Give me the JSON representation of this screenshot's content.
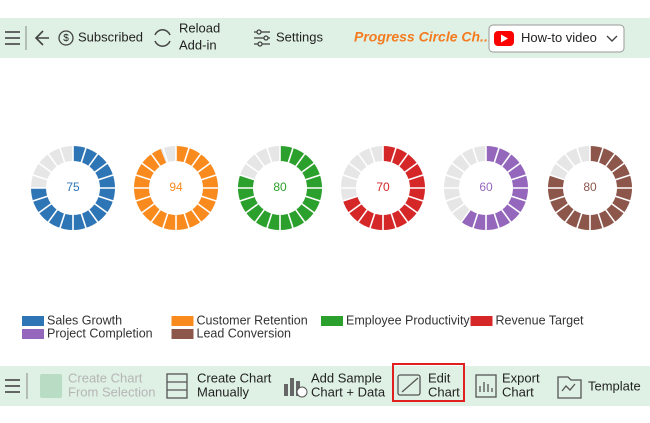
{
  "top_toolbar": {
    "subscribed": "Subscribed",
    "reload": [
      "Reload",
      "Add-in"
    ],
    "settings": "Settings",
    "title": "Progress Circle Ch...",
    "video_button": "How-to video"
  },
  "chart_data": {
    "type": "progress-circle",
    "series": [
      {
        "name": "Sales Growth",
        "color": "#2e75b6",
        "value": 75
      },
      {
        "name": "Customer Retention",
        "color": "#f98b1e",
        "value": 94
      },
      {
        "name": "Employee Productivity",
        "color": "#2ca02c",
        "value": 80
      },
      {
        "name": "Revenue Target",
        "color": "#d62728",
        "value": 70
      },
      {
        "name": "Project Completion",
        "color": "#9467bd",
        "value": 60
      },
      {
        "name": "Lead Conversion",
        "color": "#8c564b",
        "value": 80
      }
    ],
    "max": 100
  },
  "bottom_toolbar": {
    "items": [
      {
        "lines": [
          "Create Chart",
          "From Selection"
        ]
      },
      {
        "lines": [
          "Create Chart",
          "Manually"
        ]
      },
      {
        "lines": [
          "Add Sample",
          "Chart + Data"
        ]
      },
      {
        "lines": [
          "Edit",
          "Chart"
        ]
      },
      {
        "lines": [
          "Export",
          "Chart"
        ]
      },
      {
        "lines": [
          "Template"
        ]
      }
    ]
  }
}
